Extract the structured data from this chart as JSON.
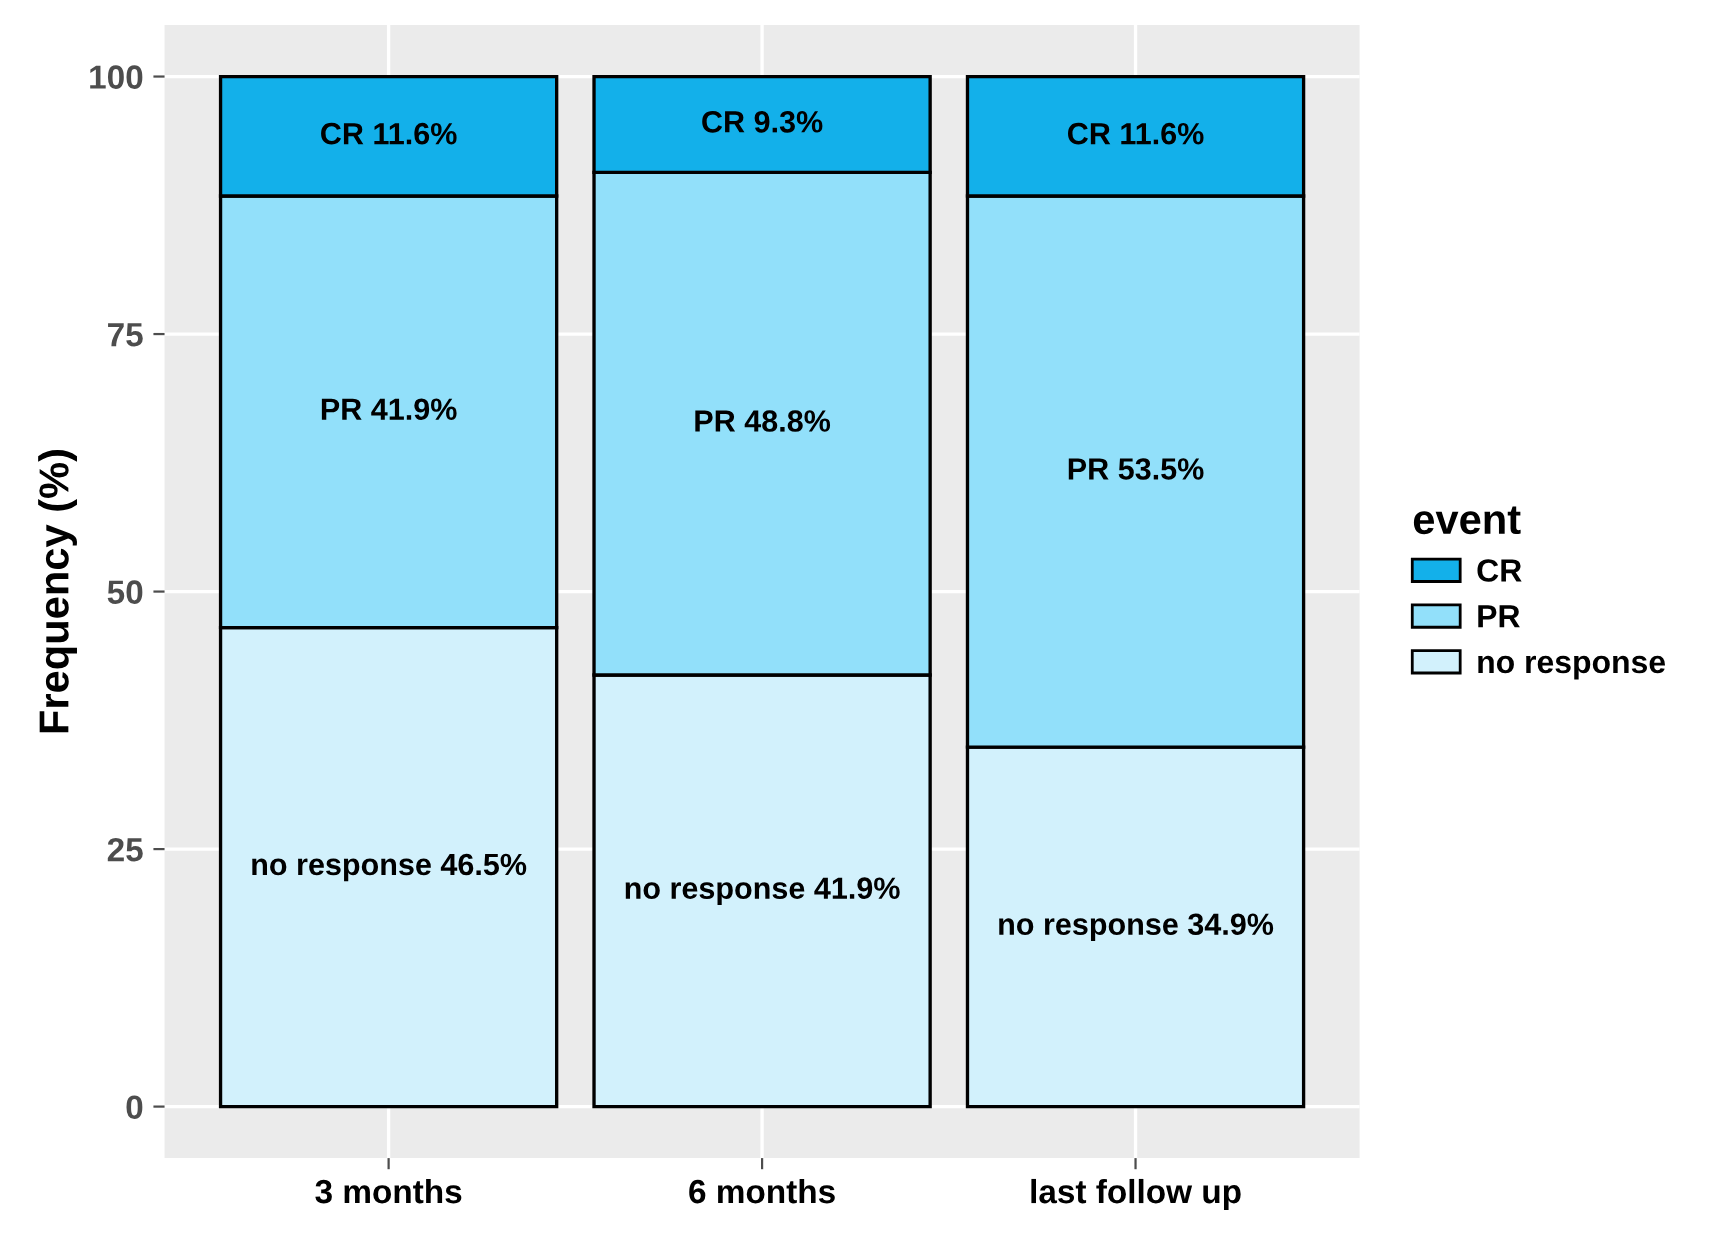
{
  "chart_data": {
    "type": "bar",
    "stacked": true,
    "ylabel": "Frequency (%)",
    "legend_title": "event",
    "legend": "right",
    "grid": true,
    "categories": [
      "3 months",
      "6 months",
      "last follow up"
    ],
    "ylim": [
      -5,
      105
    ],
    "yticks": [
      0,
      25,
      50,
      75,
      100
    ],
    "series": [
      {
        "name": "no response",
        "color": "#d2f1fc",
        "values": [
          46.5,
          41.9,
          34.9
        ],
        "value_labels": [
          "no response 46.5%",
          "no response 41.9%",
          "no response 34.9%"
        ]
      },
      {
        "name": "PR",
        "color": "#92e0fa",
        "values": [
          41.9,
          48.8,
          53.5
        ],
        "value_labels": [
          "PR 41.9%",
          "PR 48.8%",
          "PR 53.5%"
        ]
      },
      {
        "name": "CR",
        "color": "#13b0ea",
        "values": [
          11.6,
          9.3,
          11.6
        ],
        "value_labels": [
          "CR 11.6%",
          "CR 9.3%",
          "CR 11.6%"
        ]
      }
    ]
  }
}
